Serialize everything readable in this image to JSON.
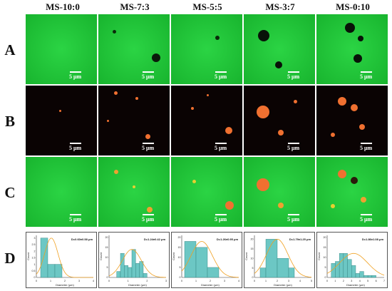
{
  "columns": [
    "MS-10:0",
    "MS-7:3",
    "MS-5:5",
    "MS-3:7",
    "MS-0:10"
  ],
  "rows": [
    "A",
    "B",
    "C",
    "D"
  ],
  "scale_label": "5 μm",
  "colors": {
    "green_channel": "#22c53a",
    "red_channel_bg": "#0a0303",
    "droplet": "#f07030",
    "histogram_fill": "#6cc7c4",
    "histogram_edge": "#2f7f7c",
    "fit_curve": "#f0a020"
  },
  "chart_data": [
    {
      "type": "bar",
      "group": "MS-10:0",
      "annotation": "D=0.60±0.58 μm",
      "xlabel": "Diameter (μm)",
      "ylabel": "Count",
      "xlim": [
        0,
        4
      ],
      "ylim": [
        0,
        3.2
      ],
      "xticks": [
        0,
        1,
        2,
        3,
        4
      ],
      "yticks": [
        0,
        0.5,
        1,
        1.5,
        2,
        2.5,
        3
      ],
      "bin_edges": [
        0.3,
        0.8,
        1.3,
        1.8
      ],
      "values": [
        3,
        1,
        1
      ],
      "fit_curve": true
    },
    {
      "type": "bar",
      "group": "MS-7:3",
      "annotation": "D=1.24±0.42 μm",
      "xlabel": "Diameter (μm)",
      "ylabel": "Count",
      "xlim": [
        0,
        3
      ],
      "ylim": [
        0,
        21
      ],
      "xticks": [
        0,
        1,
        2,
        3
      ],
      "yticks": [
        0,
        5,
        10,
        15,
        20
      ],
      "bin_edges": [
        0.4,
        0.6,
        0.8,
        1.0,
        1.2,
        1.4,
        1.6,
        1.8,
        2.0
      ],
      "values": [
        3,
        12,
        6,
        5,
        14,
        7,
        8,
        2
      ],
      "fit_curve": true
    },
    {
      "type": "bar",
      "group": "MS-5:5",
      "annotation": "D=1.26±0.95 μm",
      "xlabel": "Diameter (μm)",
      "ylabel": "Count",
      "xlim": [
        0,
        4
      ],
      "ylim": [
        0,
        21
      ],
      "xticks": [
        0,
        1,
        2,
        3,
        4
      ],
      "yticks": [
        0,
        5,
        10,
        15,
        20
      ],
      "bin_edges": [
        0.2,
        1.0,
        1.8,
        2.6
      ],
      "values": [
        18,
        15,
        5
      ],
      "fit_curve": true
    },
    {
      "type": "bar",
      "group": "MS-3:7",
      "annotation": "D=1.79±1.25 μm",
      "xlabel": "Diameter (μm)",
      "ylabel": "Count",
      "xlim": [
        0,
        5
      ],
      "ylim": [
        0,
        22
      ],
      "xticks": [
        0,
        1,
        2,
        3,
        4,
        5
      ],
      "yticks": [
        0,
        5,
        10,
        15,
        20
      ],
      "bin_edges": [
        0.5,
        1.0,
        2.0,
        3.0,
        3.5
      ],
      "values": [
        5,
        20,
        10,
        5
      ],
      "fit_curve": true
    },
    {
      "type": "bar",
      "group": "MS-0:10",
      "annotation": "D=1.86±1.08 μm",
      "xlabel": "Diameter (μm)",
      "ylabel": "Count",
      "xlim": [
        0,
        7
      ],
      "ylim": [
        0,
        21
      ],
      "xticks": [
        0,
        1,
        2,
        3,
        4,
        5,
        6,
        7
      ],
      "yticks": [
        0,
        5,
        10,
        15,
        20
      ],
      "bin_edges": [
        0.5,
        1.0,
        1.5,
        2.0,
        2.5,
        3.0,
        3.5,
        4.0,
        4.5,
        5.0,
        5.5,
        6.0
      ],
      "values": [
        7,
        8,
        12,
        12,
        9,
        6,
        2,
        3,
        1,
        1,
        1
      ],
      "fit_curve": true
    }
  ]
}
